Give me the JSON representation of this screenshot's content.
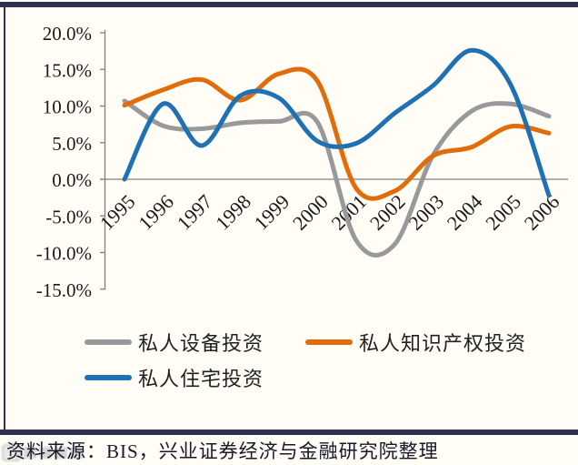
{
  "frame": {
    "accent_color": "#30304f",
    "background": "#fffdf6"
  },
  "source_note": "资料来源：BIS，兴业证券经济与金融研究院整理",
  "legend": {
    "rows": [
      [
        "私人设备投资",
        "私人知识产权投资"
      ],
      [
        "私人住宅投资"
      ]
    ]
  },
  "chart_data": {
    "type": "line",
    "title": "",
    "xlabel": "",
    "ylabel": "",
    "grid": false,
    "legend_position": "bottom",
    "categories": [
      "1995",
      "1996",
      "1997",
      "1998",
      "1999",
      "2000",
      "2001",
      "2002",
      "2003",
      "2004",
      "2005",
      "2006"
    ],
    "y_ticks": [
      "20.0%",
      "15.0%",
      "10.0%",
      "5.0%",
      "0.0%",
      "-5.0%",
      "-10.0%",
      "-15.0%"
    ],
    "y_tick_values": [
      20,
      15,
      10,
      5,
      0,
      -5,
      -10,
      -15
    ],
    "ylim": [
      -15,
      20
    ],
    "axis_color": "#808080",
    "series": [
      {
        "name": "私人设备投资",
        "color": "#999999",
        "values": [
          10.7,
          7.3,
          6.9,
          7.7,
          7.9,
          7.8,
          -8.3,
          -8.9,
          3.3,
          9.3,
          10.3,
          8.6
        ]
      },
      {
        "name": "私人知识产权投资",
        "color": "#e26b0a",
        "values": [
          10.1,
          12.2,
          13.6,
          10.8,
          14.4,
          13.4,
          -1.2,
          -1.6,
          3.2,
          4.4,
          7.2,
          6.3
        ]
      },
      {
        "name": "私人住宅投资",
        "color": "#2071b4",
        "values": [
          0.0,
          10.3,
          4.6,
          11.4,
          11.1,
          5.2,
          4.9,
          9.0,
          12.8,
          17.6,
          13.0,
          -2.2
        ]
      }
    ]
  }
}
